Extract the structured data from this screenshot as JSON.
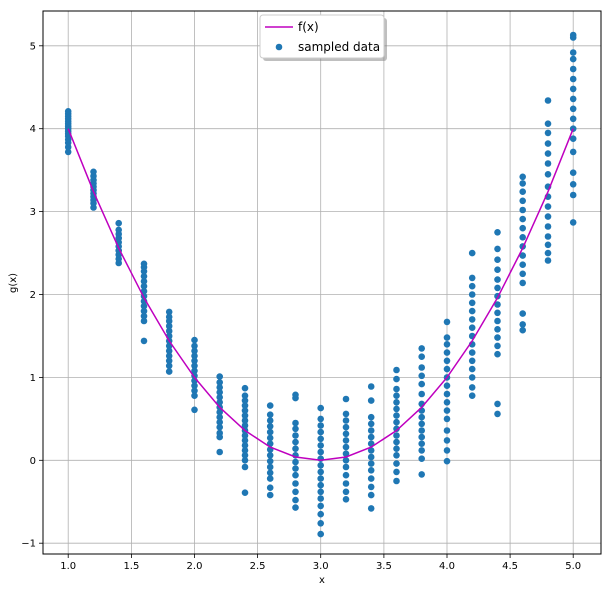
{
  "chart_data": {
    "type": "scatter",
    "title": "",
    "xlabel": "x",
    "ylabel": "g(x)",
    "xlim": [
      0.8,
      5.22
    ],
    "ylim": [
      -1.13,
      5.42
    ],
    "xticks": [
      1.0,
      1.5,
      2.0,
      2.5,
      3.0,
      3.5,
      4.0,
      4.5,
      5.0
    ],
    "xtick_labels": [
      "1.0",
      "1.5",
      "2.0",
      "2.5",
      "3.0",
      "3.5",
      "4.0",
      "4.5",
      "5.0"
    ],
    "yticks": [
      -1,
      0,
      1,
      2,
      3,
      4,
      5
    ],
    "ytick_labels": [
      "−1",
      "0",
      "1",
      "2",
      "3",
      "4",
      "5"
    ],
    "grid": true,
    "legend": {
      "position": "upper center",
      "entries": [
        "f(x)",
        "sampled data"
      ]
    },
    "series": [
      {
        "name": "f(x)",
        "kind": "line",
        "color": "#bf00bf",
        "x": [
          1.0,
          1.2,
          1.4,
          1.6,
          1.8,
          2.0,
          2.2,
          2.4,
          2.6,
          2.8,
          3.0,
          3.2,
          3.4,
          3.6,
          3.8,
          4.0,
          4.2,
          4.4,
          4.6,
          4.8,
          5.0
        ],
        "y": [
          4.0,
          3.24,
          2.56,
          1.96,
          1.44,
          1.0,
          0.64,
          0.36,
          0.16,
          0.04,
          0.0,
          0.04,
          0.16,
          0.36,
          0.64,
          1.0,
          1.44,
          1.96,
          2.56,
          3.24,
          4.0
        ]
      },
      {
        "name": "sampled data",
        "kind": "scatter",
        "color": "#1f77b4",
        "groups": [
          {
            "x": 1.0,
            "y": [
              3.72,
              3.78,
              3.83,
              3.87,
              3.91,
              3.94,
              3.97,
              4.0,
              4.03,
              4.06,
              4.09,
              4.12,
              4.15,
              4.18,
              4.21
            ]
          },
          {
            "x": 1.2,
            "y": [
              3.05,
              3.1,
              3.14,
              3.18,
              3.22,
              3.26,
              3.3,
              3.34,
              3.38,
              3.43,
              3.48
            ]
          },
          {
            "x": 1.4,
            "y": [
              2.38,
              2.43,
              2.48,
              2.53,
              2.58,
              2.63,
              2.68,
              2.73,
              2.78,
              2.86
            ]
          },
          {
            "x": 1.6,
            "y": [
              1.44,
              1.68,
              1.74,
              1.8,
              1.86,
              1.92,
              1.98,
              2.04,
              2.1,
              2.16,
              2.22,
              2.28,
              2.33,
              2.37
            ]
          },
          {
            "x": 1.8,
            "y": [
              1.07,
              1.14,
              1.2,
              1.26,
              1.32,
              1.38,
              1.44,
              1.5,
              1.56,
              1.62,
              1.68,
              1.73,
              1.79
            ]
          },
          {
            "x": 2.0,
            "y": [
              0.61,
              0.78,
              0.84,
              0.9,
              0.96,
              1.02,
              1.08,
              1.14,
              1.2,
              1.26,
              1.32,
              1.38,
              1.45
            ]
          },
          {
            "x": 2.2,
            "y": [
              0.1,
              0.28,
              0.33,
              0.4,
              0.46,
              0.52,
              0.58,
              0.64,
              0.7,
              0.76,
              0.82,
              0.88,
              0.94,
              1.01
            ]
          },
          {
            "x": 2.4,
            "y": [
              -0.39,
              -0.08,
              0.0,
              0.06,
              0.12,
              0.18,
              0.24,
              0.3,
              0.36,
              0.42,
              0.48,
              0.54,
              0.6,
              0.66,
              0.72,
              0.78,
              0.87
            ]
          },
          {
            "x": 2.6,
            "y": [
              -0.42,
              -0.33,
              -0.22,
              -0.15,
              -0.08,
              -0.01,
              0.06,
              0.13,
              0.2,
              0.27,
              0.34,
              0.41,
              0.48,
              0.55,
              0.66
            ]
          },
          {
            "x": 2.8,
            "y": [
              -0.57,
              -0.48,
              -0.38,
              -0.28,
              -0.18,
              -0.1,
              -0.02,
              0.06,
              0.14,
              0.22,
              0.3,
              0.38,
              0.45,
              0.75,
              0.79
            ]
          },
          {
            "x": 3.0,
            "y": [
              -0.89,
              -0.76,
              -0.65,
              -0.55,
              -0.46,
              -0.38,
              -0.3,
              -0.22,
              -0.14,
              -0.06,
              0.02,
              0.1,
              0.18,
              0.26,
              0.34,
              0.42,
              0.5,
              0.63
            ]
          },
          {
            "x": 3.2,
            "y": [
              -0.47,
              -0.38,
              -0.28,
              -0.18,
              -0.08,
              0.0,
              0.08,
              0.16,
              0.24,
              0.32,
              0.4,
              0.48,
              0.56,
              0.74
            ]
          },
          {
            "x": 3.4,
            "y": [
              -0.58,
              -0.42,
              -0.32,
              -0.22,
              -0.12,
              -0.04,
              0.04,
              0.12,
              0.2,
              0.28,
              0.36,
              0.44,
              0.52,
              0.72,
              0.89
            ]
          },
          {
            "x": 3.6,
            "y": [
              -0.25,
              -0.14,
              -0.04,
              0.06,
              0.14,
              0.22,
              0.3,
              0.38,
              0.46,
              0.54,
              0.62,
              0.7,
              0.78,
              0.86,
              0.98,
              1.09
            ]
          },
          {
            "x": 3.8,
            "y": [
              -0.17,
              0.02,
              0.12,
              0.2,
              0.28,
              0.36,
              0.44,
              0.52,
              0.6,
              0.68,
              0.8,
              0.92,
              1.02,
              1.12,
              1.25,
              1.35
            ]
          },
          {
            "x": 4.0,
            "y": [
              -0.01,
              0.12,
              0.24,
              0.36,
              0.5,
              0.6,
              0.7,
              0.8,
              0.9,
              1.0,
              1.1,
              1.2,
              1.3,
              1.4,
              1.48,
              1.67
            ]
          },
          {
            "x": 4.2,
            "y": [
              0.78,
              0.88,
              1.0,
              1.1,
              1.2,
              1.3,
              1.4,
              1.5,
              1.6,
              1.7,
              1.8,
              1.9,
              2.0,
              2.1,
              2.2,
              2.5
            ]
          },
          {
            "x": 4.4,
            "y": [
              0.56,
              0.68,
              1.28,
              1.38,
              1.48,
              1.58,
              1.68,
              1.78,
              1.88,
              1.98,
              2.08,
              2.18,
              2.3,
              2.42,
              2.55,
              2.75
            ]
          },
          {
            "x": 4.6,
            "y": [
              1.57,
              1.64,
              1.77,
              2.14,
              2.25,
              2.36,
              2.47,
              2.58,
              2.69,
              2.8,
              2.91,
              3.02,
              3.13,
              3.24,
              3.34,
              3.42
            ]
          },
          {
            "x": 4.8,
            "y": [
              2.41,
              2.5,
              2.6,
              2.7,
              2.82,
              2.94,
              3.06,
              3.18,
              3.3,
              3.45,
              3.58,
              3.7,
              3.82,
              3.95,
              4.06,
              4.34
            ]
          },
          {
            "x": 5.0,
            "y": [
              2.87,
              3.2,
              3.33,
              3.47,
              3.72,
              3.88,
              4.0,
              4.12,
              4.24,
              4.36,
              4.48,
              4.6,
              4.72,
              4.84,
              4.92,
              5.1,
              5.13
            ]
          }
        ]
      }
    ]
  }
}
